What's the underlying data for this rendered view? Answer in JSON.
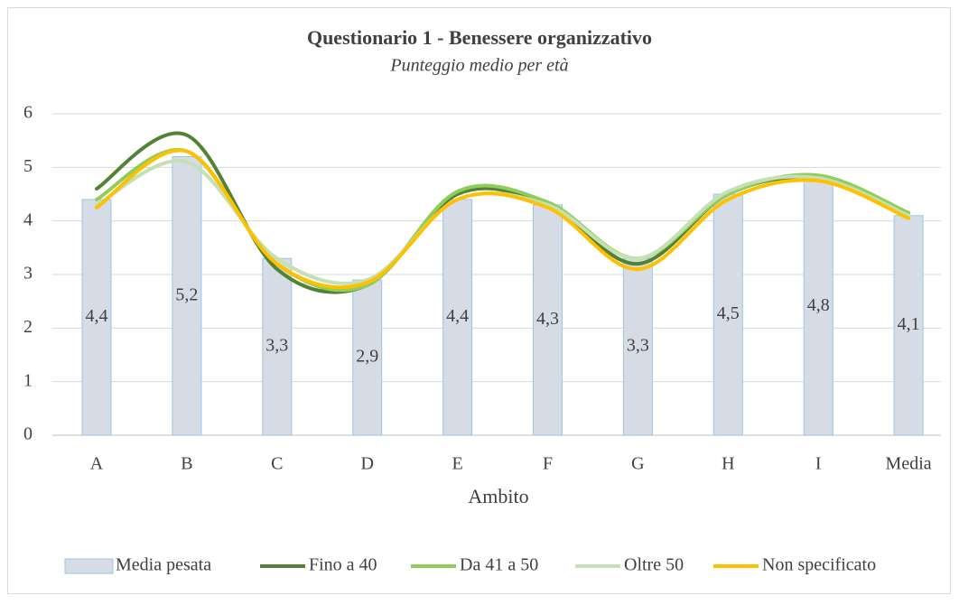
{
  "chart_data": {
    "type": "bar-line",
    "title": "Questionario 1  - Benessere organizzativo",
    "subtitle": "Punteggio medio per età",
    "x_label": "Ambito",
    "categories": [
      "A",
      "B",
      "C",
      "D",
      "E",
      "F",
      "G",
      "H",
      "I",
      "Media"
    ],
    "bar_series": {
      "name": "Media pesata",
      "color": "#d6dce5",
      "edge_color": "#9dc3e6",
      "values": [
        4.4,
        5.2,
        3.3,
        2.9,
        4.4,
        4.3,
        3.3,
        4.5,
        4.8,
        4.1
      ],
      "value_labels": [
        "4,4",
        "5,2",
        "3,3",
        "2,9",
        "4,4",
        "4,3",
        "3,3",
        "4,5",
        "4,8",
        "4,1"
      ]
    },
    "series": [
      {
        "name": "Fino a 40",
        "color": "#548235",
        "values": [
          4.6,
          5.6,
          3.1,
          2.8,
          4.5,
          4.3,
          3.2,
          4.5,
          4.8,
          4.15
        ]
      },
      {
        "name": "Da 41 a 50",
        "color": "#8fce5a",
        "values": [
          4.4,
          5.3,
          3.2,
          2.8,
          4.55,
          4.35,
          3.3,
          4.5,
          4.85,
          4.15
        ]
      },
      {
        "name": "Oltre 50",
        "color": "#c5e0b4",
        "values": [
          4.3,
          5.1,
          3.3,
          2.9,
          4.4,
          4.3,
          3.3,
          4.55,
          4.8,
          4.1
        ]
      },
      {
        "name": "Non specificato",
        "color": "#ffc000",
        "values": [
          4.25,
          5.3,
          3.2,
          2.85,
          4.4,
          4.25,
          3.1,
          4.4,
          4.75,
          4.05
        ]
      }
    ],
    "smooth": true,
    "ylim": [
      0,
      6
    ],
    "yticks": [
      0,
      1,
      2,
      3,
      4,
      5,
      6
    ],
    "grid": true,
    "legend": "bottom"
  }
}
